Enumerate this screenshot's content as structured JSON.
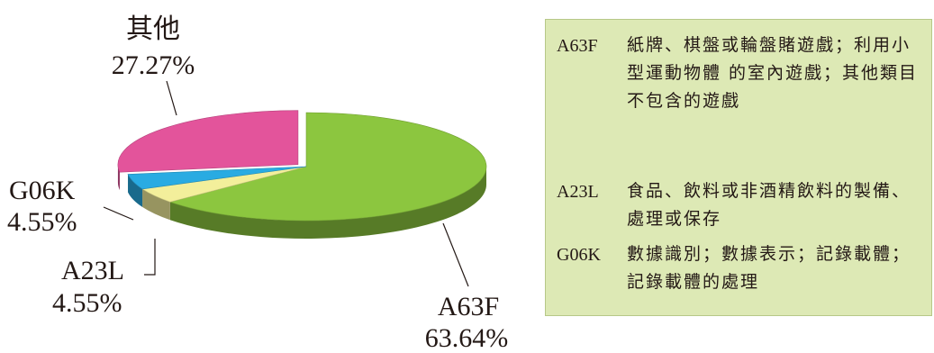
{
  "chart_data": {
    "type": "pie",
    "title": "",
    "slices": [
      {
        "code": "A63F",
        "label_pct": "63.64%",
        "value": 63.64,
        "color": "#8cc63f"
      },
      {
        "code": "A23L",
        "label_pct": "4.55%",
        "value": 4.55,
        "color": "#f3ef9b"
      },
      {
        "code": "G06K",
        "label_pct": "4.55%",
        "value": 4.55,
        "color": "#29abe2"
      },
      {
        "code": "其他",
        "label_pct": "27.27%",
        "value": 27.27,
        "color": "#e3549b"
      }
    ]
  },
  "legend": {
    "background": "#dde9b5",
    "entries": [
      {
        "code": "A63F",
        "desc": "紙牌、棋盤或輪盤賭遊戲；利用小型運動物體 的室內遊戲；其他類目不包含的遊戲"
      },
      {
        "code": "A23L",
        "desc": "食品、飲料或非酒精飲料的製備、處理或保存"
      },
      {
        "code": "G06K",
        "desc": "數據識別；數據表示；記錄載體；記錄載體的處理"
      }
    ]
  }
}
